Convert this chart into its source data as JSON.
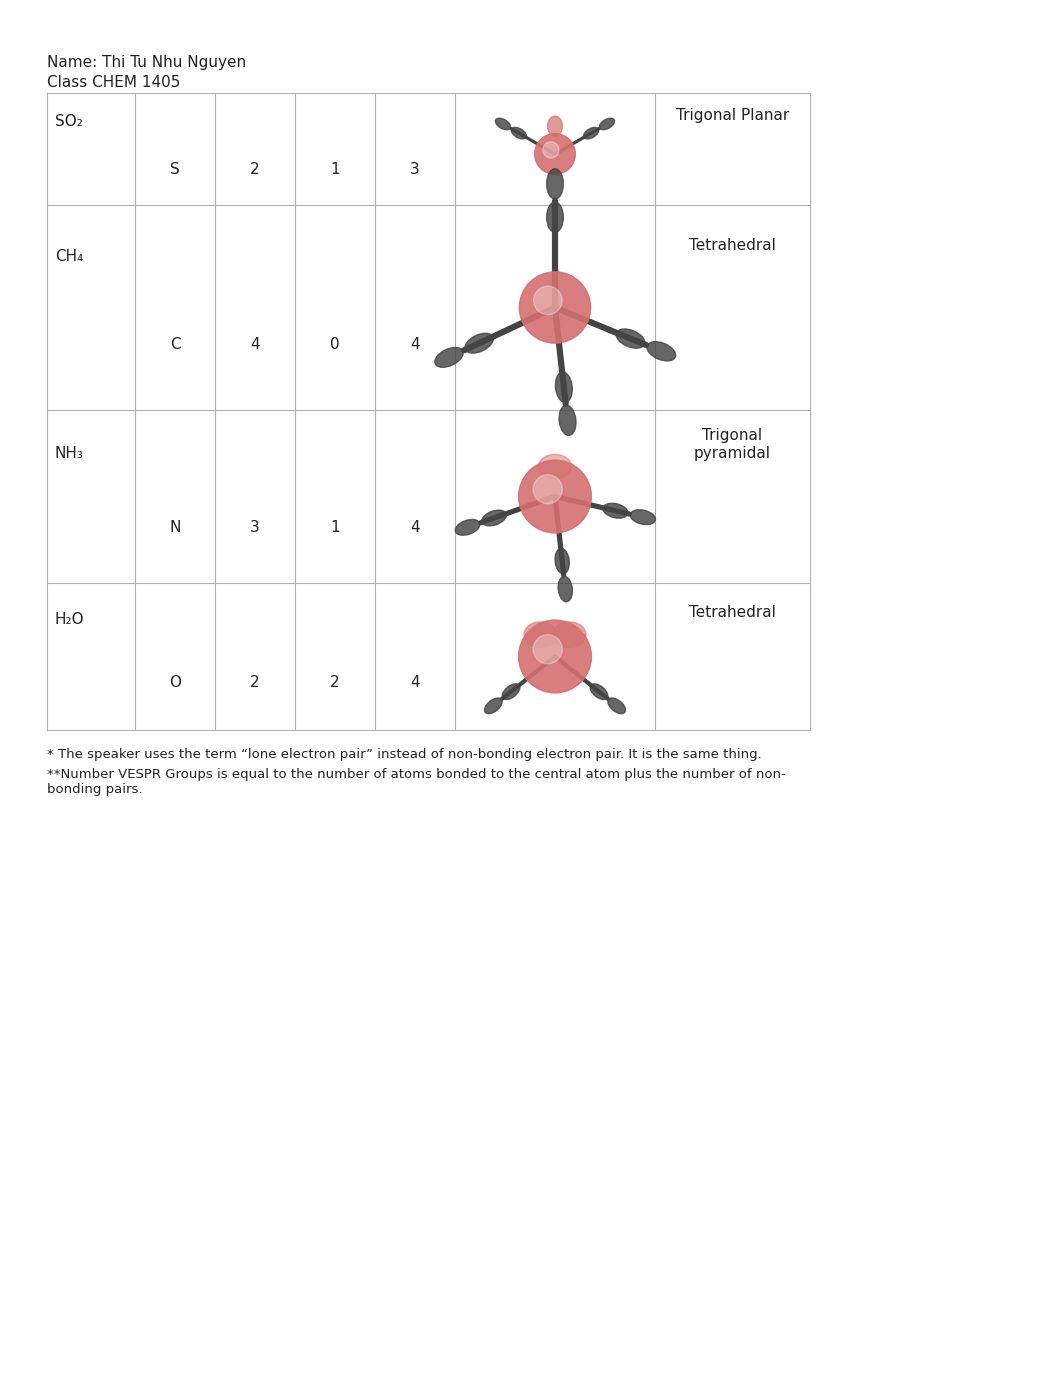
{
  "title_line1": "Name: Thi Tu Nhu Nguyen",
  "title_line2": "Class CHEM 1405",
  "bg_color": "#ffffff",
  "table_border_color": "#b0b0b0",
  "rows": [
    {
      "molecule": "SO₂",
      "central_atom": "S",
      "bonding_pairs": "2",
      "lone_pairs": "1",
      "vespr_groups": "3",
      "geometry": "Trigonal Planar"
    },
    {
      "molecule": "CH₄",
      "central_atom": "C",
      "bonding_pairs": "4",
      "lone_pairs": "0",
      "vespr_groups": "4",
      "geometry": "Tetrahedral"
    },
    {
      "molecule": "NH₃",
      "central_atom": "N",
      "bonding_pairs": "3",
      "lone_pairs": "1",
      "vespr_groups": "4",
      "geometry": "Trigonal\npyramidal"
    },
    {
      "molecule": "H₂O",
      "central_atom": "O",
      "bonding_pairs": "2",
      "lone_pairs": "2",
      "vespr_groups": "4",
      "geometry": "Tetrahedral"
    }
  ],
  "footnote1": "* The speaker uses the term “lone electron pair” instead of non-bonding electron pair. It is the same thing.",
  "footnote2": "**Number VESPR Groups is equal to the number of atoms bonded to the central atom plus the number of non-\nbonding pairs.",
  "font_size_title": 11,
  "font_size_table": 11,
  "font_size_footnote": 9.5,
  "red_color": "#d47070",
  "dark_color": "#444444"
}
